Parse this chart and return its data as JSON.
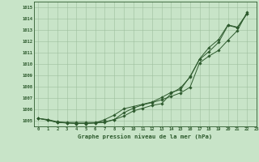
{
  "title": "Graphe pression niveau de la mer (hPa)",
  "background_color": "#c8e4c8",
  "plot_bg_color": "#c8e4c8",
  "grid_color": "#9ebf9e",
  "line_color": "#2d5a2d",
  "marker_color": "#2d5a2d",
  "xlim": [
    -0.5,
    23
  ],
  "ylim": [
    1004.5,
    1015.5
  ],
  "yticks": [
    1005,
    1006,
    1007,
    1008,
    1009,
    1010,
    1011,
    1012,
    1013,
    1014,
    1015
  ],
  "xticks": [
    0,
    1,
    2,
    3,
    4,
    5,
    6,
    7,
    8,
    9,
    10,
    11,
    12,
    13,
    14,
    15,
    16,
    17,
    18,
    19,
    20,
    21,
    22,
    23
  ],
  "series": [
    [
      1005.2,
      1005.1,
      1004.9,
      1004.85,
      1004.85,
      1004.85,
      1004.85,
      1004.9,
      1005.1,
      1005.4,
      1005.85,
      1006.1,
      1006.35,
      1006.5,
      1007.4,
      1007.9,
      1008.85,
      1010.4,
      1011.1,
      1011.9,
      1013.4,
      1013.2,
      1014.4
    ],
    [
      1005.2,
      1005.05,
      1004.85,
      1004.8,
      1004.75,
      1004.75,
      1004.8,
      1005.1,
      1005.5,
      1006.05,
      1006.25,
      1006.45,
      1006.65,
      1007.05,
      1007.5,
      1007.75,
      1008.9,
      1010.45,
      1011.45,
      1012.15,
      1013.45,
      1013.25,
      1014.45
    ],
    [
      1005.2,
      1005.05,
      1004.85,
      1004.8,
      1004.75,
      1004.75,
      1004.8,
      1004.85,
      1005.1,
      1005.7,
      1006.1,
      1006.4,
      1006.6,
      1006.85,
      1007.15,
      1007.45,
      1007.95,
      1010.1,
      1010.7,
      1011.2,
      1012.1,
      1012.95,
      1014.55
    ]
  ],
  "x_values": [
    0,
    1,
    2,
    3,
    4,
    5,
    6,
    7,
    8,
    9,
    10,
    11,
    12,
    13,
    14,
    15,
    16,
    17,
    18,
    19,
    20,
    21,
    22
  ]
}
